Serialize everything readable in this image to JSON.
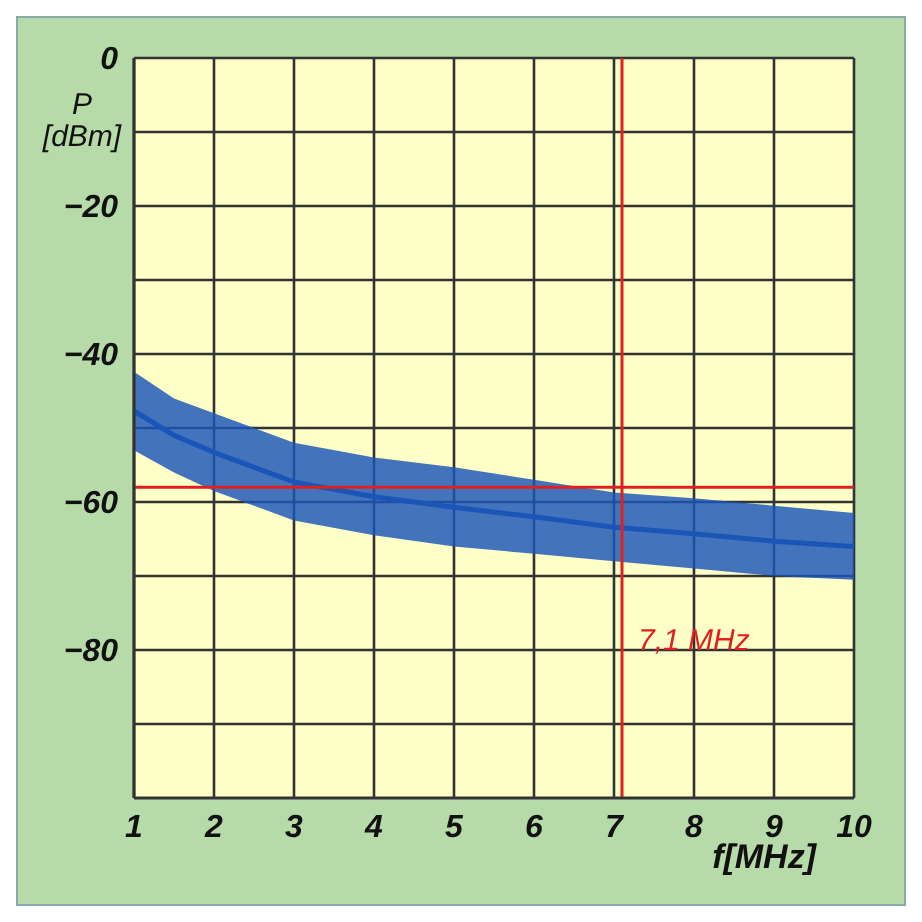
{
  "chart_data": {
    "type": "line",
    "xlabel": "f[MHz]",
    "ylabel": "P [dBm]",
    "x": [
      1,
      1.5,
      2,
      3,
      4,
      5,
      6,
      7,
      8,
      9,
      10
    ],
    "series": [
      {
        "color": "#1a56b8",
        "values": [
          -47.7,
          -51,
          -53.3,
          -57.3,
          -59.3,
          -60.7,
          -62,
          -63.4,
          -64.3,
          -65.3,
          -66
        ],
        "lower": [
          -53,
          -56,
          -58.5,
          -62.5,
          -64.5,
          -66,
          -67,
          -68,
          -69,
          -70,
          -70.5
        ],
        "upper": [
          -42.4,
          -46,
          -48,
          -52,
          -54,
          -55.3,
          -57,
          -58.7,
          -59.5,
          -60.5,
          -61.5
        ]
      }
    ],
    "xlim": [
      1,
      10
    ],
    "xticks": [
      1,
      2,
      3,
      4,
      5,
      6,
      7,
      8,
      9,
      10
    ],
    "ylim": [
      -100,
      0
    ],
    "yticks": [
      0,
      {
        "value": -10,
        "label": null
      },
      -20,
      {
        "value": -30,
        "label": null
      },
      -40,
      {
        "value": -50,
        "label": null
      },
      -60,
      {
        "value": -70,
        "label": null
      },
      -80,
      {
        "value": -90,
        "label": null
      }
    ],
    "grid": true,
    "marker": "none",
    "line_style": "solid",
    "ref_lines": [
      {
        "axis": "x",
        "value": 7.1,
        "label": "7,1 MHz",
        "color": "#e02020"
      },
      {
        "axis": "y",
        "value": -58,
        "color": "#e02020"
      }
    ]
  }
}
